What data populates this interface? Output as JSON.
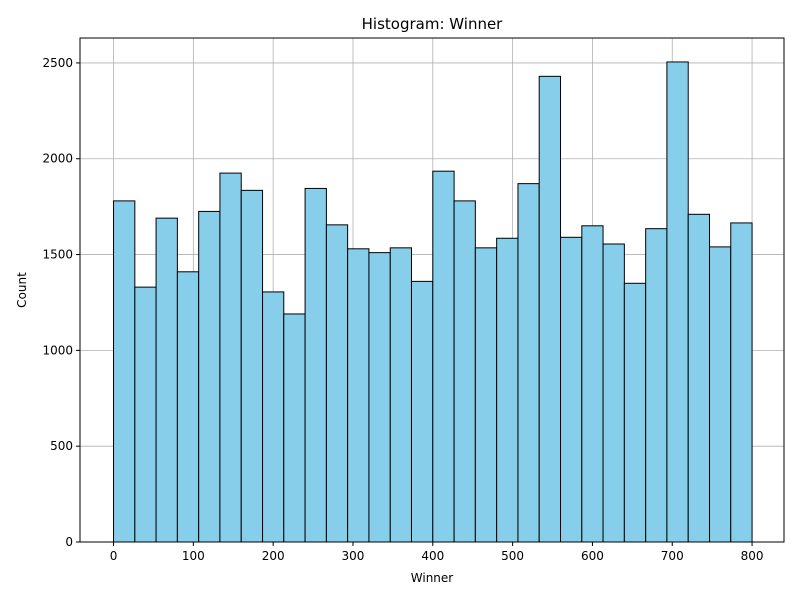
{
  "chart_data": {
    "type": "bar",
    "title": "Histogram: Winner",
    "xlabel": "Winner",
    "ylabel": "Count",
    "bin_edges": [
      0,
      26.7,
      53.3,
      80,
      106.7,
      133.3,
      160,
      186.7,
      213.3,
      240,
      266.7,
      293.3,
      320,
      346.7,
      373.3,
      400,
      426.7,
      453.3,
      480,
      506.7,
      533.3,
      560,
      586.7,
      613.3,
      640,
      666.7,
      693.3,
      720,
      746.7,
      773.3,
      800
    ],
    "values": [
      1780,
      1330,
      1690,
      1410,
      1725,
      1925,
      1835,
      1305,
      1190,
      1845,
      1655,
      1530,
      1510,
      1535,
      1360,
      1935,
      1780,
      1535,
      1585,
      1870,
      2430,
      1590,
      1650,
      1555,
      1350,
      1635,
      2505,
      1710,
      1540,
      1665
    ],
    "xlim": [
      -42,
      840
    ],
    "ylim": [
      0,
      2630
    ],
    "xticks": [
      "0",
      "100",
      "200",
      "300",
      "400",
      "500",
      "600",
      "700",
      "800"
    ],
    "yticks": [
      "0",
      "500",
      "1000",
      "1500",
      "2000",
      "2500"
    ],
    "grid": true,
    "colors": {
      "bar_fill": "#87ceeb",
      "bar_edge": "#000000",
      "grid": "#b0b0b0"
    }
  }
}
